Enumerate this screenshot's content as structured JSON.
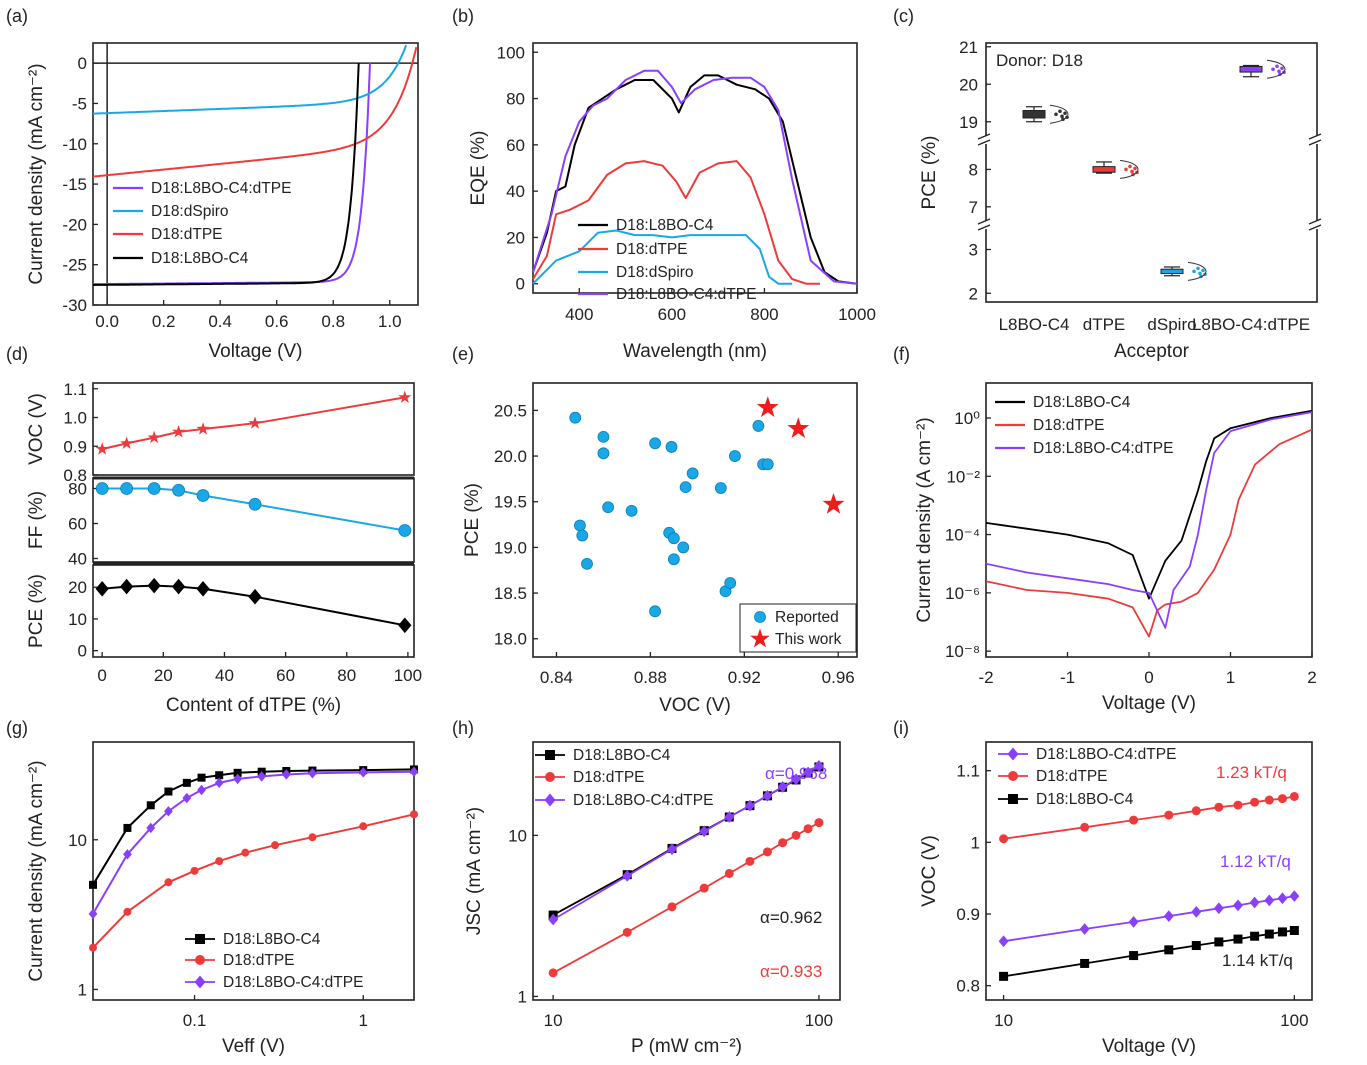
{
  "colors": {
    "black": "#000000",
    "red": "#ed3b3b",
    "blue": "#1aa7e6",
    "purple": "#8a3ffc",
    "star": "#ee1c1c"
  },
  "panels": [
    {
      "id": "a",
      "label": "(a)",
      "type": "line",
      "xlabel": "Voltage (V)",
      "ylabel": "Current density (mA cm⁻²)",
      "xlim": [
        -0.05,
        1.1
      ],
      "ylim": [
        -30,
        2.5
      ],
      "xticks": [
        0.0,
        0.2,
        0.4,
        0.6,
        0.8,
        1.0
      ],
      "yticks": [
        0,
        -5,
        -10,
        -15,
        -20,
        -25,
        -30
      ],
      "legend": [
        "D18:L8BO-C4:dTPE",
        "D18:dSpiro",
        "D18:dTPE",
        "D18:L8BO-C4"
      ]
    },
    {
      "id": "b",
      "label": "(b)",
      "type": "line",
      "xlabel": "Wavelength (nm)",
      "ylabel": "EQE (%)",
      "xlim": [
        300,
        1000
      ],
      "ylim": [
        -4,
        104
      ],
      "xticks": [
        400,
        600,
        800,
        1000
      ],
      "yticks": [
        0,
        20,
        40,
        60,
        80,
        100
      ],
      "legend": [
        "D18:L8BO-C4",
        "D18:dTPE",
        "D18:dSpiro",
        "D18:L8BO-C4:dTPE"
      ]
    },
    {
      "id": "c",
      "label": "(c)",
      "type": "box",
      "xlabel": "Acceptor",
      "ylabel": "PCE (%)",
      "annotation": "Donor: D18",
      "categories": [
        "L8BO-C4",
        "dTPE",
        "dSpiro",
        "L8BO-C4:dTPE"
      ],
      "yticks": [
        "21",
        "20",
        "19",
        "8",
        "7",
        "3",
        "2"
      ]
    },
    {
      "id": "d",
      "label": "(d)",
      "type": "line",
      "xlabel": "Content of dTPE (%)",
      "xticks": [
        0,
        20,
        40,
        60,
        80,
        100
      ],
      "sub": [
        {
          "ylabel": "VOC (V)",
          "yticks": [
            "1.1",
            "1.0",
            "0.9",
            "0.8"
          ]
        },
        {
          "ylabel": "FF (%)",
          "yticks": [
            "80",
            "60",
            "40"
          ]
        },
        {
          "ylabel": "PCE (%)",
          "yticks": [
            "20",
            "10",
            "0"
          ]
        }
      ]
    },
    {
      "id": "e",
      "label": "(e)",
      "type": "scatter",
      "xlabel": "VOC (V)",
      "ylabel": "PCE (%)",
      "xlim": [
        0.83,
        0.968
      ],
      "ylim": [
        17.8,
        20.8
      ],
      "xticks": [
        "0.84",
        "0.88",
        "0.92",
        "0.96"
      ],
      "yticks": [
        "20.5",
        "20.0",
        "19.5",
        "19.0",
        "18.5",
        "18.0"
      ],
      "legend": [
        "Reported",
        "This work"
      ]
    },
    {
      "id": "f",
      "label": "(f)",
      "type": "line",
      "xlabel": "Voltage (V)",
      "ylabel": "Current density (A cm⁻²)",
      "xticks": [
        "-2",
        "-1",
        "0",
        "1",
        "2"
      ],
      "yticks": [
        "10⁰",
        "10⁻²",
        "10⁻⁴",
        "10⁻⁶",
        "10⁻⁸"
      ],
      "legend": [
        "D18:L8BO-C4",
        "D18:dTPE",
        "D18:L8BO-C4:dTPE"
      ]
    },
    {
      "id": "g",
      "label": "(g)",
      "type": "line",
      "xlabel": "Veff (V)",
      "ylabel": "Current density (mA cm⁻²)",
      "xticks": [
        "0.1",
        "1"
      ],
      "yticks": [
        "10",
        "1"
      ],
      "legend": [
        "D18:L8BO-C4",
        "D18:dTPE",
        "D18:L8BO-C4:dTPE"
      ]
    },
    {
      "id": "h",
      "label": "(h)",
      "type": "line",
      "xlabel": "P (mW cm⁻²)",
      "ylabel": "JSC (mA cm⁻²)",
      "xticks": [
        "10",
        "100"
      ],
      "yticks": [
        "10",
        "1"
      ],
      "legend": [
        "D18:L8BO-C4",
        "D18:dTPE",
        "D18:L8BO-C4:dTPE"
      ],
      "annotations": [
        "α=0.968",
        "α=0.962",
        "α=0.933"
      ]
    },
    {
      "id": "i",
      "label": "(i)",
      "type": "line",
      "xlabel": "Voltage (V)",
      "ylabel": "VOC (V)",
      "xticks": [
        "10",
        "100"
      ],
      "yticks": [
        "1.1",
        "1",
        "0.9",
        "0.8"
      ],
      "legend": [
        "D18:L8BO-C4:dTPE",
        "D18:dTPE",
        "D18:L8BO-C4"
      ],
      "annotations": [
        "1.23 kT/q",
        "1.12 kT/q",
        "1.14 kT/q"
      ]
    }
  ],
  "chart_data": [
    {
      "panel": "a",
      "type": "line",
      "series": [
        {
          "name": "D18:L8BO-C4:dTPE",
          "color": "purple",
          "jsc": 27.4,
          "voc": 0.93
        },
        {
          "name": "D18:dSpiro",
          "color": "blue",
          "jsc": 6.2,
          "voc": 1.03
        },
        {
          "name": "D18:dTPE",
          "color": "red",
          "jsc": 13.9,
          "voc": 1.08
        },
        {
          "name": "D18:L8BO-C4",
          "color": "black",
          "jsc": 27.5,
          "voc": 0.89
        }
      ]
    },
    {
      "panel": "b",
      "type": "line",
      "series": [
        {
          "name": "D18:L8BO-C4",
          "color": "black",
          "x": [
            300,
            330,
            350,
            370,
            390,
            420,
            450,
            480,
            520,
            560,
            600,
            615,
            640,
            670,
            700,
            740,
            780,
            810,
            840,
            870,
            900,
            930,
            960,
            1000
          ],
          "y": [
            5,
            22,
            40,
            42,
            60,
            76,
            80,
            84,
            88,
            88,
            80,
            74,
            85,
            90,
            90,
            86,
            84,
            80,
            70,
            45,
            20,
            5,
            1,
            0
          ]
        },
        {
          "name": "D18:dTPE",
          "color": "red",
          "x": [
            300,
            330,
            350,
            380,
            420,
            460,
            500,
            540,
            580,
            610,
            630,
            660,
            700,
            740,
            770,
            800,
            830,
            860,
            890,
            920
          ],
          "y": [
            2,
            12,
            30,
            32,
            36,
            47,
            52,
            53,
            51,
            44,
            37,
            48,
            52,
            53,
            46,
            30,
            10,
            2,
            0,
            0
          ]
        },
        {
          "name": "D18:dSpiro",
          "color": "blue",
          "x": [
            300,
            350,
            400,
            440,
            480,
            520,
            560,
            600,
            640,
            680,
            720,
            760,
            790,
            810,
            830,
            860
          ],
          "y": [
            0,
            10,
            14,
            22,
            23,
            21,
            21,
            20,
            21,
            21,
            21,
            21,
            15,
            3,
            0,
            0
          ]
        },
        {
          "name": "D18:L8BO-C4:dTPE",
          "color": "purple",
          "x": [
            300,
            340,
            370,
            400,
            430,
            460,
            500,
            540,
            570,
            600,
            620,
            650,
            690,
            730,
            770,
            800,
            830,
            860,
            900,
            950,
            1000
          ],
          "y": [
            5,
            30,
            55,
            70,
            77,
            80,
            88,
            92,
            92,
            85,
            78,
            84,
            88,
            89,
            89,
            85,
            75,
            45,
            10,
            1,
            0
          ]
        }
      ]
    },
    {
      "panel": "c",
      "type": "box",
      "categories": [
        "L8BO-C4",
        "dTPE",
        "dSpiro",
        "L8BO-C4:dTPE"
      ],
      "median": [
        19.2,
        8.0,
        2.5,
        20.4
      ],
      "min": [
        19.0,
        7.9,
        2.4,
        20.2
      ],
      "max": [
        19.4,
        8.2,
        2.6,
        20.5
      ]
    },
    {
      "panel": "d",
      "type": "line",
      "x": [
        0,
        8,
        17,
        25,
        33,
        50,
        99
      ],
      "series": [
        {
          "name": "VOC",
          "values": [
            0.89,
            0.91,
            0.93,
            0.95,
            0.96,
            0.98,
            1.07
          ]
        },
        {
          "name": "FF",
          "values": [
            80,
            80,
            80,
            79,
            76,
            71,
            56
          ]
        },
        {
          "name": "PCE",
          "values": [
            19.5,
            20.2,
            20.5,
            20.2,
            19.5,
            17.0,
            8.0
          ]
        }
      ]
    },
    {
      "panel": "e",
      "type": "scatter",
      "series": [
        {
          "name": "Reported",
          "x": [
            0.848,
            0.85,
            0.851,
            0.853,
            0.86,
            0.86,
            0.862,
            0.872,
            0.882,
            0.882,
            0.888,
            0.889,
            0.89,
            0.89,
            0.894,
            0.895,
            0.898,
            0.91,
            0.912,
            0.914,
            0.916,
            0.926,
            0.928,
            0.93
          ],
          "y": [
            20.42,
            19.24,
            19.13,
            18.82,
            20.21,
            20.03,
            19.44,
            19.4,
            18.3,
            20.14,
            19.16,
            20.1,
            18.87,
            19.1,
            19.0,
            19.66,
            19.81,
            19.65,
            18.52,
            18.61,
            20.0,
            20.33,
            19.91,
            19.91
          ]
        },
        {
          "name": "This work",
          "x": [
            0.93,
            0.943,
            0.958
          ],
          "y": [
            20.53,
            20.3,
            19.47
          ]
        }
      ]
    },
    {
      "panel": "f",
      "type": "line",
      "series": [
        {
          "name": "D18:L8BO-C4",
          "color": "black",
          "x": [
            -2,
            -1.5,
            -1,
            -0.5,
            -0.2,
            0,
            0.2,
            0.4,
            0.6,
            0.7,
            0.8,
            1,
            1.5,
            2
          ],
          "y": [
            -3.6,
            -3.8,
            -4.0,
            -4.3,
            -4.7,
            -6.2,
            -4.9,
            -4.2,
            -2.5,
            -1.5,
            -0.7,
            -0.35,
            0.0,
            0.25
          ]
        },
        {
          "name": "D18:dTPE",
          "color": "red",
          "x": [
            -2,
            -1.5,
            -1,
            -0.5,
            -0.2,
            0,
            0.1,
            0.2,
            0.4,
            0.6,
            0.8,
            1,
            1.1,
            1.3,
            1.6,
            2
          ],
          "y": [
            -5.6,
            -5.9,
            -6.0,
            -6.2,
            -6.5,
            -7.5,
            -6.6,
            -6.4,
            -6.3,
            -6.0,
            -5.2,
            -4.0,
            -2.8,
            -1.6,
            -0.9,
            -0.4
          ]
        },
        {
          "name": "D18:L8BO-C4:dTPE",
          "color": "purple",
          "x": [
            -2,
            -1.5,
            -1,
            -0.5,
            -0.2,
            0,
            0.2,
            0.3,
            0.5,
            0.6,
            0.7,
            0.8,
            1,
            1.5,
            2
          ],
          "y": [
            -5.0,
            -5.3,
            -5.5,
            -5.7,
            -5.9,
            -6.0,
            -7.2,
            -5.9,
            -5.1,
            -4.0,
            -2.5,
            -1.2,
            -0.45,
            -0.05,
            0.2
          ]
        }
      ]
    },
    {
      "panel": "g",
      "type": "line",
      "series": [
        {
          "name": "D18:L8BO-C4",
          "color": "black",
          "x": [
            0.025,
            0.04,
            0.055,
            0.07,
            0.09,
            0.11,
            0.14,
            0.18,
            0.25,
            0.35,
            0.5,
            1,
            2
          ],
          "y": [
            5,
            12,
            17,
            21,
            24,
            26,
            27,
            28,
            28.5,
            28.8,
            29,
            29.2,
            29.5
          ]
        },
        {
          "name": "D18:dTPE",
          "color": "red",
          "x": [
            0.025,
            0.04,
            0.07,
            0.1,
            0.14,
            0.2,
            0.3,
            0.5,
            1,
            2
          ],
          "y": [
            1.9,
            3.3,
            5.2,
            6.2,
            7.2,
            8.2,
            9.2,
            10.4,
            12.3,
            14.8
          ]
        },
        {
          "name": "D18:L8BO-C4:dTPE",
          "color": "purple",
          "x": [
            0.025,
            0.04,
            0.055,
            0.07,
            0.09,
            0.11,
            0.14,
            0.18,
            0.25,
            0.35,
            0.5,
            1,
            2
          ],
          "y": [
            3.2,
            8,
            12,
            15.5,
            19,
            21.5,
            24,
            25.5,
            26.5,
            27.3,
            27.8,
            28.2,
            28.5
          ]
        }
      ]
    },
    {
      "panel": "h",
      "type": "line",
      "x": [
        10,
        19,
        28,
        37,
        46,
        55,
        64,
        73,
        82,
        91,
        100
      ],
      "series": [
        {
          "name": "D18:L8BO-C4",
          "color": "black",
          "values": [
            3.2,
            5.7,
            8.3,
            10.7,
            13.0,
            15.3,
            17.6,
            19.9,
            22.1,
            24.4,
            26.6
          ],
          "alpha": 0.962
        },
        {
          "name": "D18:dTPE",
          "color": "red",
          "values": [
            1.4,
            2.5,
            3.6,
            4.7,
            5.8,
            6.9,
            7.9,
            9.0,
            10.0,
            11.0,
            12.0
          ],
          "alpha": 0.933
        },
        {
          "name": "D18:L8BO-C4:dTPE",
          "color": "purple",
          "values": [
            3.0,
            5.6,
            8.2,
            10.6,
            13.0,
            15.3,
            17.6,
            20.0,
            22.3,
            24.6,
            27.0
          ],
          "alpha": 0.968
        }
      ]
    },
    {
      "panel": "i",
      "type": "line",
      "x": [
        10,
        19,
        28,
        37,
        46,
        55,
        64,
        73,
        82,
        91,
        100
      ],
      "series": [
        {
          "name": "D18:L8BO-C4:dTPE",
          "color": "purple",
          "values": [
            0.862,
            0.879,
            0.889,
            0.897,
            0.903,
            0.908,
            0.912,
            0.916,
            0.919,
            0.922,
            0.925
          ],
          "slope": "1.12 kT/q"
        },
        {
          "name": "D18:dTPE",
          "color": "red",
          "values": [
            1.005,
            1.021,
            1.031,
            1.038,
            1.044,
            1.049,
            1.052,
            1.056,
            1.059,
            1.061,
            1.064
          ],
          "slope": "1.23 kT/q"
        },
        {
          "name": "D18:L8BO-C4",
          "color": "black",
          "values": [
            0.813,
            0.831,
            0.842,
            0.85,
            0.856,
            0.861,
            0.865,
            0.869,
            0.872,
            0.875,
            0.877
          ],
          "slope": "1.14 kT/q"
        }
      ]
    }
  ]
}
